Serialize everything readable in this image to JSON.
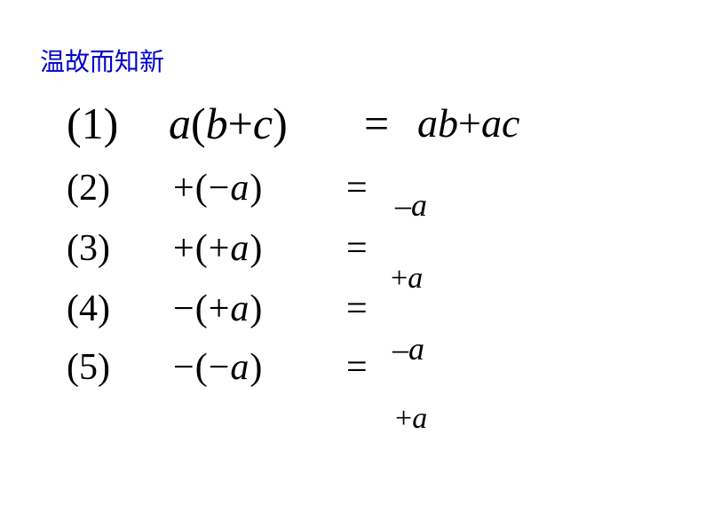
{
  "title": "温故而知新",
  "equations": [
    {
      "num": "(1)",
      "lhs_prefix": "a",
      "lhs_open": "(",
      "lhs_inner_a": "b",
      "lhs_op": "+",
      "lhs_inner_b": "c",
      "lhs_close": ")",
      "equals": "=",
      "answer_a": "ab",
      "answer_op": "+",
      "answer_b": "ac",
      "num_class": "large",
      "expr_class": "large"
    },
    {
      "num": "(2)",
      "lhs_prefix_sign": "+",
      "lhs_open": "(",
      "lhs_inner_sign": "−",
      "lhs_inner_var": "a",
      "lhs_close": ")",
      "equals": "=",
      "answer_sign": "–",
      "answer_var": "a",
      "num_class": "med",
      "expr_class": "med"
    },
    {
      "num": "(3)",
      "lhs_prefix_sign": "+",
      "lhs_open": "(",
      "lhs_inner_sign": "+",
      "lhs_inner_var": "a",
      "lhs_close": ")",
      "equals": "=",
      "answer_sign": "+",
      "answer_var": "a",
      "num_class": "med",
      "expr_class": "med"
    },
    {
      "num": "(4)",
      "lhs_prefix_sign": "−",
      "lhs_open": "(",
      "lhs_inner_sign": "+",
      "lhs_inner_var": "a",
      "lhs_close": ")",
      "equals": "=",
      "answer_sign": "–",
      "answer_var": "a",
      "num_class": "med",
      "expr_class": "med"
    },
    {
      "num": "(5)",
      "lhs_prefix_sign": "−",
      "lhs_open": "(",
      "lhs_inner_sign": "−",
      "lhs_inner_var": "a",
      "lhs_close": ")",
      "equals": "=",
      "answer_sign": "+",
      "answer_var": "a",
      "num_class": "med",
      "expr_class": "med"
    }
  ],
  "colors": {
    "title": "#0000cc",
    "text": "#000000",
    "background": "#ffffff"
  },
  "fonts": {
    "title_family": "SimSun",
    "math_family": "Times New Roman",
    "title_size": 28,
    "large_size": 50,
    "med_size": 42
  }
}
